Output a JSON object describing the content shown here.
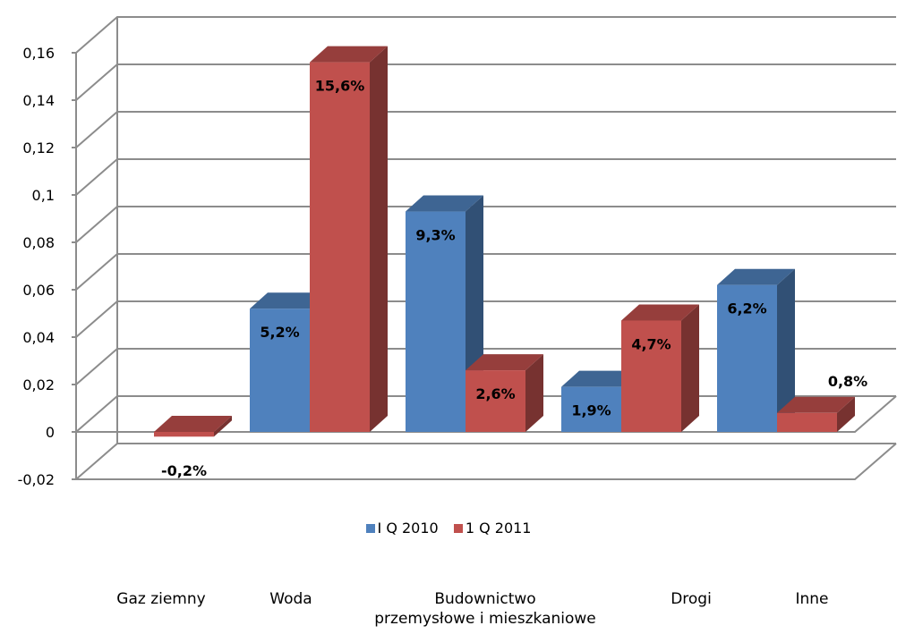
{
  "chart_data": {
    "type": "bar",
    "title": "",
    "xlabel": "",
    "ylabel": "",
    "ylim": [
      -0.02,
      0.16
    ],
    "yticks": [
      "-0,02",
      "0",
      "0,02",
      "0,04",
      "0,06",
      "0,08",
      "0,1",
      "0,12",
      "0,14",
      "0,16"
    ],
    "categories": [
      "Gaz ziemny",
      "Woda",
      "Budownictwo\nprzemysłowe i mieszkaniowe",
      "Drogi",
      "Inne"
    ],
    "series": [
      {
        "name": "I Q 2010",
        "color": "#4F81BD",
        "values": [
          null,
          0.052,
          0.093,
          0.019,
          0.062
        ],
        "labels": [
          "",
          "5,2%",
          "9,3%",
          "1,9%",
          "6,2%"
        ]
      },
      {
        "name": "1 Q 2011",
        "color": "#C0504D",
        "values": [
          -0.002,
          0.156,
          0.026,
          0.047,
          0.008
        ],
        "labels": [
          "-0,2%",
          "15,6%",
          "2,6%",
          "4,7%",
          "0,8%"
        ]
      }
    ],
    "grid": true,
    "legend_position": "bottom",
    "style": "3d"
  }
}
